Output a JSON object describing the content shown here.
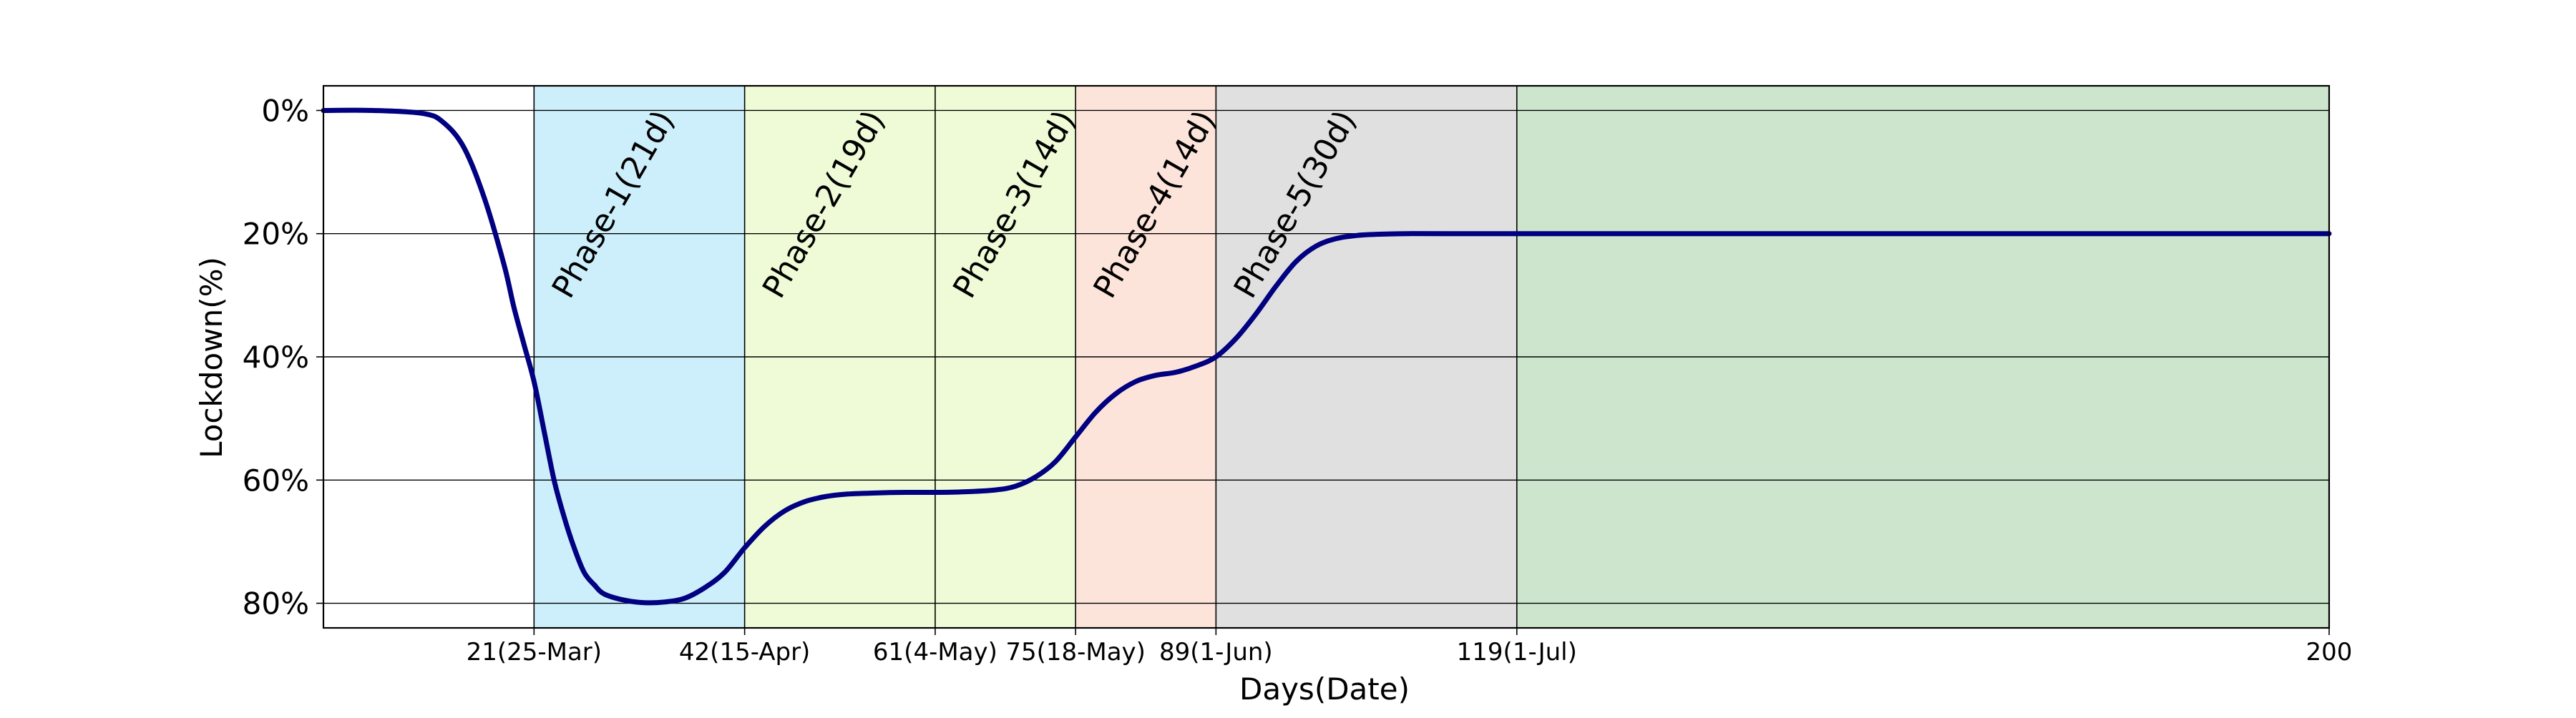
{
  "chart_data": {
    "type": "line",
    "title": "",
    "xlabel": "Days(Date)",
    "ylabel": "Lockdown(%)",
    "xlim": [
      0,
      200
    ],
    "ylim": [
      84,
      -4
    ],
    "y_inverted": true,
    "grid": "y",
    "x_ticks": [
      {
        "value": 21,
        "label": "21(25-Mar)"
      },
      {
        "value": 42,
        "label": "42(15-Apr)"
      },
      {
        "value": 61,
        "label": "61(4-May)"
      },
      {
        "value": 75,
        "label": "75(18-May)"
      },
      {
        "value": 89,
        "label": "89(1-Jun)"
      },
      {
        "value": 119,
        "label": "119(1-Jul)"
      },
      {
        "value": 200,
        "label": "200"
      }
    ],
    "y_ticks": [
      {
        "value": 0,
        "label": "0%"
      },
      {
        "value": 20,
        "label": "20%"
      },
      {
        "value": 40,
        "label": "40%"
      },
      {
        "value": 60,
        "label": "60%"
      },
      {
        "value": 80,
        "label": "80%"
      }
    ],
    "phases": [
      {
        "start": 21,
        "end": 42,
        "label": "Phase-1(21d)",
        "color": "#cceffb"
      },
      {
        "start": 42,
        "end": 61,
        "label": "Phase-2(19d)",
        "color": "#eefbd6"
      },
      {
        "start": 61,
        "end": 75,
        "label": "Phase-3(14d)",
        "color": "#eefbd6"
      },
      {
        "start": 75,
        "end": 89,
        "label": "Phase-4(14d)",
        "color": "#fde4da"
      },
      {
        "start": 89,
        "end": 119,
        "label": "Phase-5(30d)",
        "color": "#e0e0e0"
      },
      {
        "start": 119,
        "end": 200,
        "label": "",
        "color": "#cde5cd"
      }
    ],
    "series": [
      {
        "color": "#000080",
        "x": [
          0,
          5,
          10,
          12,
          14,
          16,
          18,
          19,
          20,
          21,
          22,
          23,
          24,
          25,
          26,
          27,
          28,
          30,
          32,
          34,
          36,
          38,
          40,
          42,
          44,
          46,
          48,
          50,
          52,
          55,
          58,
          61,
          64,
          67,
          69,
          71,
          73,
          75,
          77,
          79,
          81,
          83,
          85,
          87,
          89,
          91,
          93,
          95,
          97,
          99,
          101,
          103,
          105,
          108,
          112,
          119,
          130,
          150,
          175,
          200
        ],
        "y": [
          0,
          0,
          0.5,
          2,
          6,
          14,
          25,
          32,
          38,
          44,
          52,
          60,
          66,
          71,
          75,
          77,
          78.5,
          79.5,
          79.9,
          79.8,
          79.2,
          77.5,
          75,
          71,
          67.5,
          65,
          63.5,
          62.7,
          62.3,
          62.1,
          62.0,
          62.0,
          61.9,
          61.6,
          61,
          59.5,
          57,
          53,
          49,
          46,
          44,
          43,
          42.5,
          41.5,
          40,
          37,
          33,
          28.5,
          24.5,
          22,
          20.8,
          20.3,
          20.1,
          20,
          20,
          20,
          20,
          20,
          20,
          20
        ]
      }
    ]
  }
}
